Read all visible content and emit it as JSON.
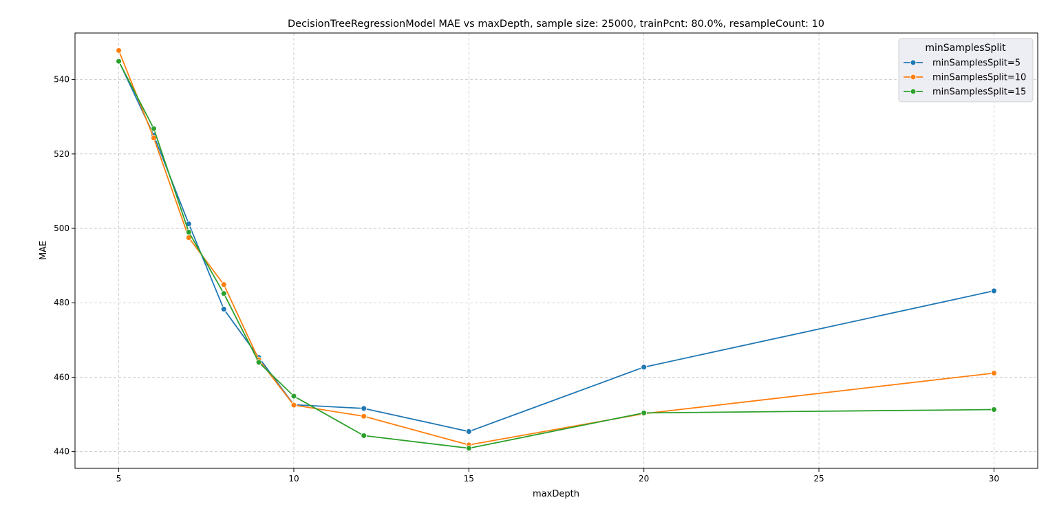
{
  "chart_data": {
    "type": "line",
    "title": "DecisionTreeRegressionModel MAE vs maxDepth, sample size: 25000, trainPcnt: 80.0%, resampleCount: 10",
    "xlabel": "maxDepth",
    "ylabel": "MAE",
    "x": [
      5,
      6,
      7,
      8,
      9,
      10,
      12,
      15,
      20,
      30
    ],
    "xlim": [
      3.75,
      31.25
    ],
    "ylim": [
      435.5,
      552.5
    ],
    "x_ticks": [
      5,
      10,
      15,
      20,
      25,
      30
    ],
    "y_ticks": [
      440,
      460,
      480,
      500,
      520,
      540
    ],
    "grid": true,
    "legend": {
      "title": "minSamplesSplit",
      "placement": "top-right"
    },
    "series": [
      {
        "name": "minSamplesSplit=5",
        "color": "#1f77b4",
        "values": [
          545.0,
          525.0,
          501.2,
          478.3,
          465.3,
          452.6,
          451.6,
          445.4,
          462.7,
          483.2
        ]
      },
      {
        "name": "minSamplesSplit=10",
        "color": "#ff7f0e",
        "values": [
          547.8,
          524.3,
          497.5,
          484.9,
          464.7,
          452.5,
          449.5,
          441.8,
          450.2,
          461.1
        ]
      },
      {
        "name": "minSamplesSplit=15",
        "color": "#2ca02c",
        "values": [
          544.9,
          526.8,
          499.0,
          482.5,
          464.0,
          454.9,
          444.3,
          440.9,
          450.4,
          451.3
        ]
      }
    ]
  }
}
